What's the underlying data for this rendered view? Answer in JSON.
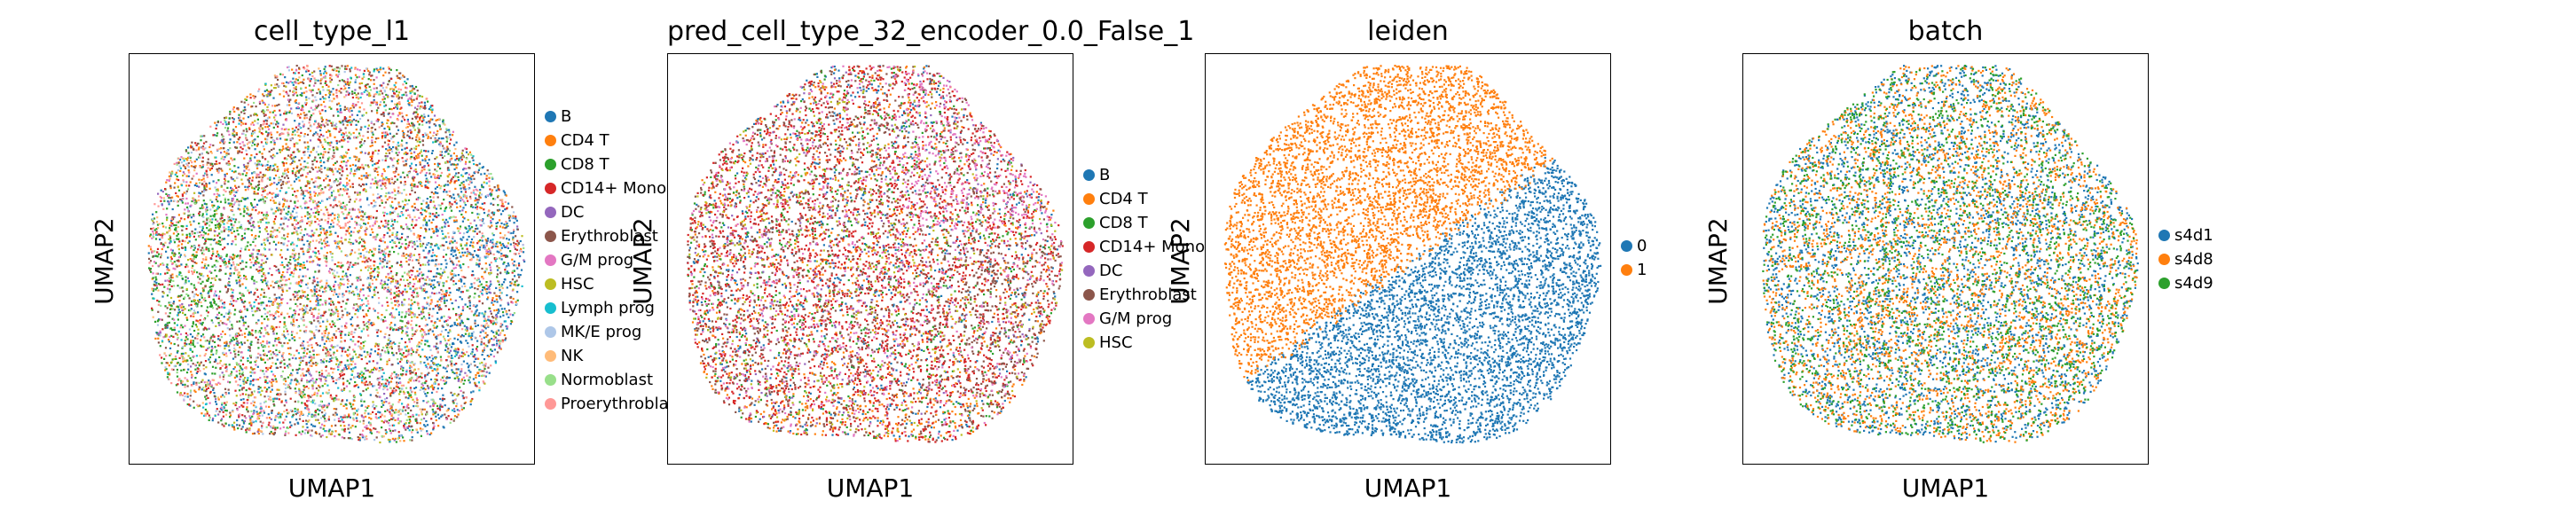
{
  "chart_data": [
    {
      "type": "scatter",
      "title": "cell_type_l1",
      "xlabel": "UMAP1",
      "ylabel": "UMAP2",
      "legend_placement": "right",
      "grid": false,
      "categories": [
        "B",
        "CD4 T",
        "CD8 T",
        "CD14+ Mono",
        "DC",
        "Erythroblast",
        "G/M prog",
        "HSC",
        "Lymph prog",
        "MK/E prog",
        "NK",
        "Normoblast",
        "Proerythroblast"
      ],
      "colors": [
        "#1f77b4",
        "#ff7f0e",
        "#2ca02c",
        "#d62728",
        "#9467bd",
        "#8c564b",
        "#e377c2",
        "#bcbd22",
        "#17becf",
        "#aec7e8",
        "#ffbb78",
        "#98df8a",
        "#ff9896"
      ]
    },
    {
      "type": "scatter",
      "title": "pred_cell_type_32_encoder_0.0_False_1",
      "xlabel": "UMAP1",
      "ylabel": "UMAP2",
      "legend_placement": "right",
      "grid": false,
      "categories": [
        "B",
        "CD4 T",
        "CD8 T",
        "CD14+ Mono",
        "DC",
        "Erythroblast",
        "G/M prog",
        "HSC"
      ],
      "colors": [
        "#1f77b4",
        "#ff7f0e",
        "#2ca02c",
        "#d62728",
        "#9467bd",
        "#8c564b",
        "#e377c2",
        "#bcbd22"
      ]
    },
    {
      "type": "scatter",
      "title": "leiden",
      "xlabel": "UMAP1",
      "ylabel": "UMAP2",
      "legend_placement": "right",
      "grid": false,
      "categories": [
        "0",
        "1"
      ],
      "colors": [
        "#1f77b4",
        "#ff7f0e"
      ]
    },
    {
      "type": "scatter",
      "title": "batch",
      "xlabel": "UMAP1",
      "ylabel": "UMAP2",
      "legend_placement": "right",
      "grid": false,
      "categories": [
        "s4d1",
        "s4d8",
        "s4d9"
      ],
      "colors": [
        "#1f77b4",
        "#ff7f0e",
        "#2ca02c"
      ]
    }
  ]
}
